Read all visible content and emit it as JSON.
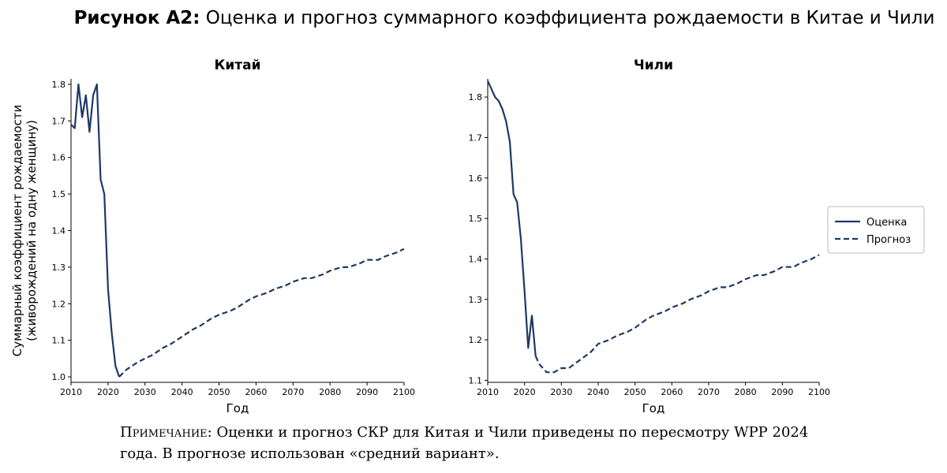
{
  "figure": {
    "title_bold": "Рисунок А2:",
    "title_rest": "Оценка и прогноз суммарного коэффициента рождаемости в Китае и Чили",
    "note_label": "Примечание:",
    "note_text": "Оценки и прогноз СКР для Китая и Чили приведены по пересмотру WPP 2024 года. В прогнозе использован «средний вариант»."
  },
  "colors": {
    "line": "#1f3864"
  },
  "legend": {
    "placement": "right",
    "items": [
      "Оценка",
      "Прогноз"
    ]
  },
  "chart_data": [
    {
      "type": "line",
      "title": "Китай",
      "xlabel": "Год",
      "ylabel": "Суммарный коэффициент рождаемости (живорождений на одну женщину)",
      "xlim": [
        2010,
        2100
      ],
      "ylim": [
        0.985,
        1.815
      ],
      "xticks": [
        2010,
        2020,
        2030,
        2040,
        2050,
        2060,
        2070,
        2080,
        2090,
        2100
      ],
      "yticks": [
        1.0,
        1.1,
        1.2,
        1.3,
        1.4,
        1.5,
        1.6,
        1.7,
        1.8
      ],
      "series": [
        {
          "name": "Оценка",
          "style": "solid",
          "x": [
            2010,
            2011,
            2012,
            2013,
            2014,
            2015,
            2016,
            2017,
            2018,
            2019,
            2020,
            2021,
            2022,
            2023
          ],
          "y": [
            1.69,
            1.68,
            1.8,
            1.71,
            1.77,
            1.67,
            1.77,
            1.8,
            1.54,
            1.5,
            1.24,
            1.12,
            1.03,
            1.0
          ]
        },
        {
          "name": "Прогноз",
          "style": "dashed",
          "x": [
            2023,
            2025,
            2028,
            2030,
            2032,
            2035,
            2037,
            2040,
            2043,
            2045,
            2048,
            2050,
            2053,
            2055,
            2058,
            2060,
            2063,
            2065,
            2068,
            2070,
            2073,
            2075,
            2078,
            2080,
            2083,
            2085,
            2088,
            2090,
            2093,
            2095,
            2098,
            2100
          ],
          "y": [
            1.0,
            1.02,
            1.04,
            1.05,
            1.06,
            1.08,
            1.09,
            1.11,
            1.13,
            1.14,
            1.16,
            1.17,
            1.18,
            1.19,
            1.21,
            1.22,
            1.23,
            1.24,
            1.25,
            1.26,
            1.27,
            1.27,
            1.28,
            1.29,
            1.3,
            1.3,
            1.31,
            1.32,
            1.32,
            1.33,
            1.34,
            1.35
          ]
        }
      ]
    },
    {
      "type": "line",
      "title": "Чили",
      "xlabel": "Год",
      "ylabel": "",
      "xlim": [
        2010,
        2100
      ],
      "ylim": [
        1.095,
        1.845
      ],
      "xticks": [
        2010,
        2020,
        2030,
        2040,
        2050,
        2060,
        2070,
        2080,
        2090,
        2100
      ],
      "yticks": [
        1.1,
        1.2,
        1.3,
        1.4,
        1.5,
        1.6,
        1.7,
        1.8
      ],
      "series": [
        {
          "name": "Оценка",
          "style": "solid",
          "x": [
            2010,
            2011,
            2012,
            2013,
            2014,
            2015,
            2016,
            2017,
            2018,
            2019,
            2020,
            2021,
            2022,
            2023
          ],
          "y": [
            1.84,
            1.82,
            1.8,
            1.79,
            1.77,
            1.74,
            1.69,
            1.56,
            1.54,
            1.45,
            1.32,
            1.18,
            1.26,
            1.16
          ]
        },
        {
          "name": "Прогноз",
          "style": "dashed",
          "x": [
            2023,
            2024,
            2025,
            2026,
            2027,
            2028,
            2030,
            2032,
            2035,
            2038,
            2040,
            2043,
            2045,
            2048,
            2050,
            2053,
            2055,
            2058,
            2060,
            2063,
            2065,
            2068,
            2070,
            2073,
            2075,
            2078,
            2080,
            2083,
            2085,
            2088,
            2090,
            2093,
            2095,
            2098,
            2100
          ],
          "y": [
            1.16,
            1.14,
            1.13,
            1.12,
            1.12,
            1.12,
            1.13,
            1.13,
            1.15,
            1.17,
            1.19,
            1.2,
            1.21,
            1.22,
            1.23,
            1.25,
            1.26,
            1.27,
            1.28,
            1.29,
            1.3,
            1.31,
            1.32,
            1.33,
            1.33,
            1.34,
            1.35,
            1.36,
            1.36,
            1.37,
            1.38,
            1.38,
            1.39,
            1.4,
            1.41
          ]
        }
      ]
    }
  ]
}
